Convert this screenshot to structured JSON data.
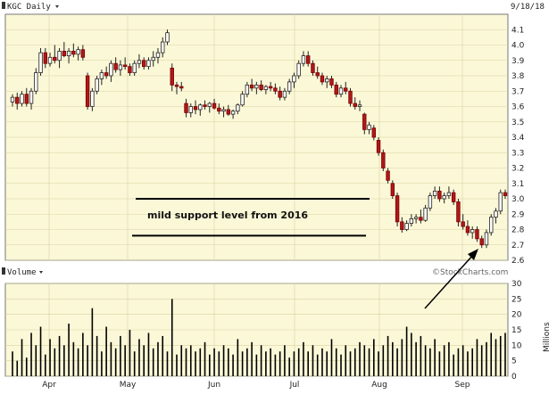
{
  "chart_data": [
    {
      "type": "candlestick",
      "symbol_label": "KGC Daily",
      "date_label": "9/18/18",
      "ylim": [
        2.6,
        4.2
      ],
      "yticks": [
        "2.6",
        "2.7",
        "2.8",
        "2.9",
        "3.0",
        "3.1",
        "3.2",
        "3.3",
        "3.4",
        "3.5",
        "3.6",
        "3.7",
        "3.8",
        "3.9",
        "4.0",
        "4.1"
      ],
      "xticks": [
        "Apr",
        "May",
        "Jun",
        "Jul",
        "Aug",
        "Sep"
      ],
      "annotation": "mild support level from 2016",
      "support_levels": [
        3.0,
        2.76
      ],
      "grid": true,
      "candles": [
        {
          "o": 3.63,
          "h": 3.68,
          "l": 3.6,
          "c": 3.66
        },
        {
          "o": 3.66,
          "h": 3.69,
          "l": 3.58,
          "c": 3.62
        },
        {
          "o": 3.62,
          "h": 3.7,
          "l": 3.6,
          "c": 3.68
        },
        {
          "o": 3.68,
          "h": 3.72,
          "l": 3.6,
          "c": 3.62
        },
        {
          "o": 3.62,
          "h": 3.72,
          "l": 3.58,
          "c": 3.7
        },
        {
          "o": 3.7,
          "h": 3.85,
          "l": 3.68,
          "c": 3.82
        },
        {
          "o": 3.82,
          "h": 3.98,
          "l": 3.8,
          "c": 3.95
        },
        {
          "o": 3.95,
          "h": 3.98,
          "l": 3.85,
          "c": 3.88
        },
        {
          "o": 3.88,
          "h": 3.95,
          "l": 3.86,
          "c": 3.92
        },
        {
          "o": 3.92,
          "h": 4.0,
          "l": 3.88,
          "c": 3.9
        },
        {
          "o": 3.9,
          "h": 3.98,
          "l": 3.85,
          "c": 3.96
        },
        {
          "o": 3.96,
          "h": 4.02,
          "l": 3.92,
          "c": 3.93
        },
        {
          "o": 3.93,
          "h": 3.98,
          "l": 3.88,
          "c": 3.96
        },
        {
          "o": 3.96,
          "h": 4.01,
          "l": 3.92,
          "c": 3.94
        },
        {
          "o": 3.94,
          "h": 3.99,
          "l": 3.9,
          "c": 3.97
        },
        {
          "o": 3.97,
          "h": 4.0,
          "l": 3.9,
          "c": 3.92
        },
        {
          "o": 3.8,
          "h": 3.82,
          "l": 3.58,
          "c": 3.6
        },
        {
          "o": 3.6,
          "h": 3.72,
          "l": 3.57,
          "c": 3.7
        },
        {
          "o": 3.7,
          "h": 3.8,
          "l": 3.68,
          "c": 3.78
        },
        {
          "o": 3.78,
          "h": 3.84,
          "l": 3.74,
          "c": 3.82
        },
        {
          "o": 3.82,
          "h": 3.86,
          "l": 3.78,
          "c": 3.8
        },
        {
          "o": 3.8,
          "h": 3.9,
          "l": 3.76,
          "c": 3.88
        },
        {
          "o": 3.88,
          "h": 3.92,
          "l": 3.82,
          "c": 3.84
        },
        {
          "o": 3.84,
          "h": 3.9,
          "l": 3.8,
          "c": 3.87
        },
        {
          "o": 3.87,
          "h": 3.92,
          "l": 3.84,
          "c": 3.86
        },
        {
          "o": 3.86,
          "h": 3.88,
          "l": 3.8,
          "c": 3.82
        },
        {
          "o": 3.82,
          "h": 3.9,
          "l": 3.8,
          "c": 3.88
        },
        {
          "o": 3.88,
          "h": 3.94,
          "l": 3.85,
          "c": 3.9
        },
        {
          "o": 3.9,
          "h": 3.92,
          "l": 3.84,
          "c": 3.86
        },
        {
          "o": 3.86,
          "h": 3.92,
          "l": 3.84,
          "c": 3.9
        },
        {
          "o": 3.9,
          "h": 3.96,
          "l": 3.86,
          "c": 3.92
        },
        {
          "o": 3.92,
          "h": 3.98,
          "l": 3.88,
          "c": 3.95
        },
        {
          "o": 3.95,
          "h": 4.05,
          "l": 3.92,
          "c": 4.02
        },
        {
          "o": 4.02,
          "h": 4.1,
          "l": 4.0,
          "c": 4.08
        },
        {
          "o": 3.85,
          "h": 3.88,
          "l": 3.7,
          "c": 3.74
        },
        {
          "o": 3.74,
          "h": 3.76,
          "l": 3.68,
          "c": 3.73
        },
        {
          "o": 3.73,
          "h": 3.76,
          "l": 3.7,
          "c": 3.72
        },
        {
          "o": 3.62,
          "h": 3.65,
          "l": 3.53,
          "c": 3.56
        },
        {
          "o": 3.56,
          "h": 3.62,
          "l": 3.53,
          "c": 3.6
        },
        {
          "o": 3.6,
          "h": 3.64,
          "l": 3.55,
          "c": 3.58
        },
        {
          "o": 3.58,
          "h": 3.62,
          "l": 3.54,
          "c": 3.61
        },
        {
          "o": 3.61,
          "h": 3.64,
          "l": 3.58,
          "c": 3.6
        },
        {
          "o": 3.6,
          "h": 3.63,
          "l": 3.56,
          "c": 3.62
        },
        {
          "o": 3.62,
          "h": 3.65,
          "l": 3.58,
          "c": 3.59
        },
        {
          "o": 3.59,
          "h": 3.62,
          "l": 3.55,
          "c": 3.57
        },
        {
          "o": 3.57,
          "h": 3.6,
          "l": 3.53,
          "c": 3.58
        },
        {
          "o": 3.58,
          "h": 3.61,
          "l": 3.54,
          "c": 3.55
        },
        {
          "o": 3.55,
          "h": 3.58,
          "l": 3.52,
          "c": 3.57
        },
        {
          "o": 3.57,
          "h": 3.62,
          "l": 3.55,
          "c": 3.61
        },
        {
          "o": 3.61,
          "h": 3.7,
          "l": 3.6,
          "c": 3.68
        },
        {
          "o": 3.68,
          "h": 3.76,
          "l": 3.66,
          "c": 3.74
        },
        {
          "o": 3.74,
          "h": 3.78,
          "l": 3.7,
          "c": 3.72
        },
        {
          "o": 3.72,
          "h": 3.76,
          "l": 3.68,
          "c": 3.74
        },
        {
          "o": 3.74,
          "h": 3.77,
          "l": 3.7,
          "c": 3.71
        },
        {
          "o": 3.71,
          "h": 3.74,
          "l": 3.68,
          "c": 3.73
        },
        {
          "o": 3.73,
          "h": 3.76,
          "l": 3.7,
          "c": 3.72
        },
        {
          "o": 3.72,
          "h": 3.75,
          "l": 3.68,
          "c": 3.7
        },
        {
          "o": 3.7,
          "h": 3.73,
          "l": 3.64,
          "c": 3.66
        },
        {
          "o": 3.66,
          "h": 3.72,
          "l": 3.64,
          "c": 3.7
        },
        {
          "o": 3.7,
          "h": 3.78,
          "l": 3.68,
          "c": 3.76
        },
        {
          "o": 3.76,
          "h": 3.82,
          "l": 3.72,
          "c": 3.8
        },
        {
          "o": 3.8,
          "h": 3.9,
          "l": 3.78,
          "c": 3.88
        },
        {
          "o": 3.88,
          "h": 3.96,
          "l": 3.86,
          "c": 3.93
        },
        {
          "o": 3.93,
          "h": 3.96,
          "l": 3.86,
          "c": 3.88
        },
        {
          "o": 3.88,
          "h": 3.9,
          "l": 3.8,
          "c": 3.82
        },
        {
          "o": 3.82,
          "h": 3.86,
          "l": 3.78,
          "c": 3.8
        },
        {
          "o": 3.8,
          "h": 3.82,
          "l": 3.74,
          "c": 3.76
        },
        {
          "o": 3.76,
          "h": 3.8,
          "l": 3.72,
          "c": 3.78
        },
        {
          "o": 3.78,
          "h": 3.8,
          "l": 3.72,
          "c": 3.74
        },
        {
          "o": 3.74,
          "h": 3.76,
          "l": 3.66,
          "c": 3.68
        },
        {
          "o": 3.68,
          "h": 3.74,
          "l": 3.66,
          "c": 3.72
        },
        {
          "o": 3.72,
          "h": 3.76,
          "l": 3.68,
          "c": 3.7
        },
        {
          "o": 3.7,
          "h": 3.72,
          "l": 3.6,
          "c": 3.62
        },
        {
          "o": 3.62,
          "h": 3.66,
          "l": 3.58,
          "c": 3.6
        },
        {
          "o": 3.6,
          "h": 3.64,
          "l": 3.57,
          "c": 3.61
        },
        {
          "o": 3.55,
          "h": 3.56,
          "l": 3.42,
          "c": 3.45
        },
        {
          "o": 3.45,
          "h": 3.5,
          "l": 3.42,
          "c": 3.48
        },
        {
          "o": 3.46,
          "h": 3.48,
          "l": 3.38,
          "c": 3.4
        },
        {
          "o": 3.38,
          "h": 3.4,
          "l": 3.28,
          "c": 3.3
        },
        {
          "o": 3.3,
          "h": 3.32,
          "l": 3.18,
          "c": 3.2
        },
        {
          "o": 3.18,
          "h": 3.2,
          "l": 3.1,
          "c": 3.12
        },
        {
          "o": 3.1,
          "h": 3.12,
          "l": 3.0,
          "c": 3.02
        },
        {
          "o": 3.02,
          "h": 3.04,
          "l": 2.82,
          "c": 2.85
        },
        {
          "o": 2.85,
          "h": 2.88,
          "l": 2.78,
          "c": 2.8
        },
        {
          "o": 2.8,
          "h": 2.86,
          "l": 2.79,
          "c": 2.84
        },
        {
          "o": 2.84,
          "h": 2.9,
          "l": 2.82,
          "c": 2.87
        },
        {
          "o": 2.87,
          "h": 2.9,
          "l": 2.84,
          "c": 2.88
        },
        {
          "o": 2.88,
          "h": 2.93,
          "l": 2.84,
          "c": 2.86
        },
        {
          "o": 2.86,
          "h": 2.96,
          "l": 2.85,
          "c": 2.94
        },
        {
          "o": 2.94,
          "h": 3.04,
          "l": 2.92,
          "c": 3.02
        },
        {
          "o": 3.02,
          "h": 3.08,
          "l": 3.0,
          "c": 3.05
        },
        {
          "o": 3.05,
          "h": 3.08,
          "l": 2.98,
          "c": 3.0
        },
        {
          "o": 3.0,
          "h": 3.04,
          "l": 2.97,
          "c": 3.02
        },
        {
          "o": 3.02,
          "h": 3.08,
          "l": 3.0,
          "c": 3.04
        },
        {
          "o": 3.04,
          "h": 3.06,
          "l": 2.96,
          "c": 2.98
        },
        {
          "o": 2.98,
          "h": 3.0,
          "l": 2.82,
          "c": 2.85
        },
        {
          "o": 2.85,
          "h": 2.9,
          "l": 2.8,
          "c": 2.82
        },
        {
          "o": 2.82,
          "h": 2.86,
          "l": 2.76,
          "c": 2.78
        },
        {
          "o": 2.78,
          "h": 2.82,
          "l": 2.74,
          "c": 2.8
        },
        {
          "o": 2.8,
          "h": 2.82,
          "l": 2.72,
          "c": 2.74
        },
        {
          "o": 2.74,
          "h": 2.76,
          "l": 2.68,
          "c": 2.7
        },
        {
          "o": 2.7,
          "h": 2.8,
          "l": 2.68,
          "c": 2.78
        },
        {
          "o": 2.78,
          "h": 2.9,
          "l": 2.76,
          "c": 2.88
        },
        {
          "o": 2.88,
          "h": 2.94,
          "l": 2.84,
          "c": 2.92
        },
        {
          "o": 2.92,
          "h": 3.06,
          "l": 2.9,
          "c": 3.04
        },
        {
          "o": 3.04,
          "h": 3.06,
          "l": 3.0,
          "c": 3.02
        }
      ]
    },
    {
      "type": "bar",
      "label": "Volume",
      "unit_label": "Millions",
      "ylim": [
        0,
        30
      ],
      "yticks": [
        "0",
        "5",
        "10",
        "15",
        "20",
        "25",
        "30"
      ],
      "watermark": "©StockCharts.com",
      "values": [
        8,
        5,
        12,
        6,
        14,
        10,
        16,
        7,
        12,
        9,
        13,
        10,
        17,
        11,
        9,
        14,
        10,
        22,
        13,
        8,
        16,
        11,
        9,
        13,
        10,
        15,
        8,
        12,
        10,
        14,
        9,
        11,
        13,
        8,
        25,
        7,
        10,
        9,
        10,
        8,
        9,
        11,
        7,
        9,
        8,
        10,
        9,
        7,
        12,
        8,
        9,
        11,
        7,
        10,
        8,
        9,
        7,
        8,
        10,
        6,
        8,
        9,
        11,
        8,
        10,
        7,
        9,
        8,
        12,
        9,
        7,
        10,
        8,
        9,
        11,
        10,
        9,
        12,
        8,
        10,
        13,
        11,
        9,
        12,
        16,
        14,
        11,
        13,
        10,
        9,
        12,
        8,
        10,
        11,
        7,
        9,
        10,
        8,
        9,
        12,
        10,
        11,
        14,
        12,
        13,
        14
      ]
    }
  ]
}
